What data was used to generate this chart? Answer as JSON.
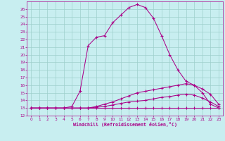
{
  "xlabel": "Windchill (Refroidissement éolien,°C)",
  "bg_color": "#c8eef0",
  "grid_color": "#9ecfcc",
  "line_color": "#aa0088",
  "xlim": [
    -0.5,
    23.5
  ],
  "ylim": [
    12,
    27
  ],
  "yticks": [
    12,
    13,
    14,
    15,
    16,
    17,
    18,
    19,
    20,
    21,
    22,
    23,
    24,
    25,
    26
  ],
  "xticks": [
    0,
    1,
    2,
    3,
    4,
    5,
    6,
    7,
    8,
    9,
    10,
    11,
    12,
    13,
    14,
    15,
    16,
    17,
    18,
    19,
    20,
    21,
    22,
    23
  ],
  "line1_x": [
    0,
    1,
    2,
    3,
    4,
    5,
    6,
    7,
    8,
    9,
    10,
    11,
    12,
    13,
    14,
    15,
    16,
    17,
    18,
    19,
    20,
    21,
    22,
    23
  ],
  "line1_y": [
    13.0,
    13.0,
    13.0,
    13.0,
    13.0,
    13.0,
    13.0,
    13.0,
    13.0,
    13.0,
    13.0,
    13.0,
    13.0,
    13.0,
    13.0,
    13.0,
    13.0,
    13.0,
    13.0,
    13.0,
    13.0,
    13.0,
    13.0,
    13.0
  ],
  "line2_x": [
    0,
    1,
    2,
    3,
    4,
    5,
    6,
    7,
    8,
    9,
    10,
    11,
    12,
    13,
    14,
    15,
    16,
    17,
    18,
    19,
    20,
    21,
    22,
    23
  ],
  "line2_y": [
    13.0,
    13.0,
    13.0,
    13.0,
    13.0,
    13.0,
    13.0,
    13.0,
    13.1,
    13.2,
    13.4,
    13.6,
    13.8,
    13.9,
    14.0,
    14.2,
    14.4,
    14.5,
    14.7,
    14.8,
    14.7,
    14.3,
    13.8,
    13.2
  ],
  "line3_x": [
    0,
    1,
    2,
    3,
    4,
    5,
    6,
    7,
    8,
    9,
    10,
    11,
    12,
    13,
    14,
    15,
    16,
    17,
    18,
    19,
    20,
    21,
    22,
    23
  ],
  "line3_y": [
    13.0,
    13.0,
    13.0,
    13.0,
    13.0,
    13.0,
    13.0,
    13.0,
    13.2,
    13.5,
    13.8,
    14.2,
    14.6,
    15.0,
    15.2,
    15.4,
    15.6,
    15.8,
    16.0,
    16.2,
    16.0,
    15.5,
    14.8,
    13.5
  ],
  "line4_x": [
    0,
    1,
    2,
    3,
    4,
    5,
    6,
    7,
    8,
    9,
    10,
    11,
    12,
    13,
    14,
    15,
    16,
    17,
    18,
    19,
    20,
    21,
    22,
    23
  ],
  "line4_y": [
    13.0,
    13.0,
    13.0,
    13.0,
    13.0,
    13.2,
    15.2,
    21.2,
    22.3,
    22.5,
    24.2,
    25.2,
    26.2,
    26.6,
    26.2,
    24.8,
    22.5,
    20.0,
    18.0,
    16.5,
    16.0,
    15.0,
    13.5,
    13.0
  ]
}
